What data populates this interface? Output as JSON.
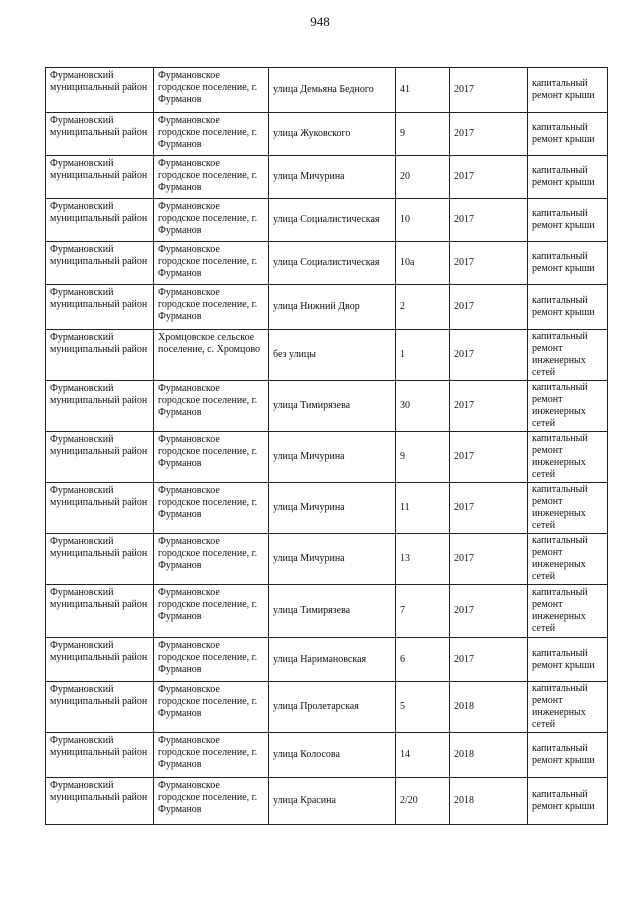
{
  "page_number": "948",
  "rows": [
    {
      "district": "Фурмановский муниципальный район",
      "settlement": "Фурмановское городское поселение, г. Фурманов",
      "street": "улица Демьяна Бедного",
      "house": "41",
      "year": "2017",
      "work": "капитальный ремонт крыши"
    },
    {
      "district": "Фурмановский муниципальный район",
      "settlement": "Фурмановское городское поселение, г. Фурманов",
      "street": "улица Жуковского",
      "house": "9",
      "year": "2017",
      "work": "капитальный ремонт крыши"
    },
    {
      "district": "Фурмановский муниципальный район",
      "settlement": "Фурмановское городское поселение, г. Фурманов",
      "street": "улица Мичурина",
      "house": "20",
      "year": "2017",
      "work": "капитальный ремонт крыши"
    },
    {
      "district": "Фурмановский муниципальный район",
      "settlement": "Фурмановское городское поселение, г. Фурманов",
      "street": "улица Социалистическая",
      "house": "10",
      "year": "2017",
      "work": "капитальный ремонт крыши"
    },
    {
      "district": "Фурмановский муниципальный район",
      "settlement": "Фурмановское городское поселение, г. Фурманов",
      "street": "улица Социалистическая",
      "house": "10а",
      "year": "2017",
      "work": "капитальный ремонт крыши"
    },
    {
      "district": "Фурмановский муниципальный район",
      "settlement": "Фурмановское городское поселение, г. Фурманов",
      "street": "улица Нижний Двор",
      "house": "2",
      "year": "2017",
      "work": "капитальный ремонт крыши"
    },
    {
      "district": "Фурмановский муниципальный район",
      "settlement": "Хромцовское сельское поселение, с. Хромцово",
      "street": "без улицы",
      "house": "1",
      "year": "2017",
      "work": "капитальный ремонт инженерных сетей"
    },
    {
      "district": "Фурмановский муниципальный район",
      "settlement": "Фурмановское городское поселение, г. Фурманов",
      "street": "улица Тимирязева",
      "house": "30",
      "year": "2017",
      "work": "капитальный ремонт инженерных сетей"
    },
    {
      "district": "Фурмановский муниципальный район",
      "settlement": "Фурмановское городское поселение, г. Фурманов",
      "street": "улица Мичурина",
      "house": "9",
      "year": "2017",
      "work": "капитальный ремонт инженерных сетей"
    },
    {
      "district": "Фурмановский муниципальный район",
      "settlement": "Фурмановское городское поселение, г. Фурманов",
      "street": "улица Мичурина",
      "house": "11",
      "year": "2017",
      "work": "капитальный ремонт инженерных сетей"
    },
    {
      "district": "Фурмановский муниципальный район",
      "settlement": "Фурмановское городское поселение, г. Фурманов",
      "street": "улица Мичурина",
      "house": "13",
      "year": "2017",
      "work": "капитальный ремонт инженерных сетей"
    },
    {
      "district": "Фурмановский муниципальный район",
      "settlement": "Фурмановское городское поселение, г. Фурманов",
      "street": "улица Тимирязева",
      "house": "7",
      "year": "2017",
      "work": "капитальный ремонт инженерных сетей"
    },
    {
      "district": "Фурмановский муниципальный район",
      "settlement": "Фурмановское городское поселение, г. Фурманов",
      "street": "улица Наримановская",
      "house": "6",
      "year": "2017",
      "work": "капитальный ремонт крыши"
    },
    {
      "district": "Фурмановский муниципальный район",
      "settlement": "Фурмановское городское поселение, г. Фурманов",
      "street": "улица Пролетарская",
      "house": "5",
      "year": "2018",
      "work": "капитальный ремонт инженерных сетей"
    },
    {
      "district": "Фурмановский муниципальный район",
      "settlement": "Фурмановское городское поселение, г. Фурманов",
      "street": "улица Колосова",
      "house": "14",
      "year": "2018",
      "work": "капитальный ремонт крыши"
    },
    {
      "district": "Фурмановский муниципальный район",
      "settlement": "Фурмановское городское поселение, г. Фурманов",
      "street": "улица Красина",
      "house": "2/20",
      "year": "2018",
      "work": "капитальный ремонт крыши"
    }
  ]
}
